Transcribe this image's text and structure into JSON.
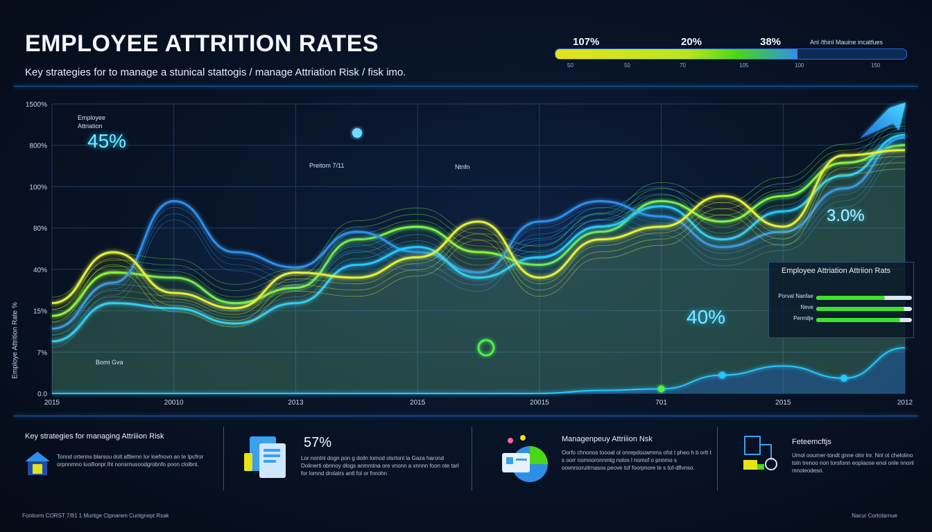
{
  "header": {
    "title": "EMPLOYEE ATTRITION RATES",
    "subtitle": "Key strategies for to manage a stunical stattogis / manage Attriation Risk / fisk imo."
  },
  "progress": {
    "labels": [
      "107%",
      "20%",
      "38%"
    ],
    "legend": "Anl /thinl Mauine incatfues",
    "fraction": 0.69,
    "ticks": [
      "50",
      "50",
      "70",
      "105",
      "100",
      "150"
    ]
  },
  "chart_data": {
    "type": "area",
    "y_ticks": [
      "1500%",
      "800%",
      "100%",
      "80%",
      "40%",
      "15%",
      "7%",
      "0.0"
    ],
    "x_ticks": [
      "2015",
      "20010",
      "2013",
      "2015",
      "20015",
      "701",
      "2015",
      "2012"
    ],
    "ylabel": "Employe Attrition Rate %",
    "grid": true,
    "series_scale": [
      0,
      100
    ],
    "series": [
      {
        "color": "#7CF53A",
        "values": [
          25,
          42,
          40,
          30,
          36,
          55,
          60,
          50,
          45,
          58,
          70,
          62,
          72,
          85,
          92
        ]
      },
      {
        "color": "#2F8FE8",
        "values": [
          20,
          38,
          70,
          50,
          44,
          58,
          50,
          42,
          62,
          70,
          64,
          52,
          58,
          75,
          95
        ]
      },
      {
        "color": "#27C9FF",
        "values": [
          15,
          30,
          28,
          22,
          30,
          45,
          52,
          40,
          48,
          60,
          68,
          55,
          66,
          80,
          96
        ]
      },
      {
        "color": "#E3F03A",
        "values": [
          30,
          50,
          34,
          28,
          42,
          40,
          48,
          62,
          40,
          55,
          60,
          72,
          60,
          88,
          90
        ]
      }
    ],
    "bottom_series": {
      "color": "#27C9FF",
      "values": [
        0,
        0,
        0,
        0,
        0,
        0,
        0,
        0,
        0,
        2,
        3,
        12,
        18,
        10,
        30
      ]
    },
    "annotations": [
      {
        "label": "Employee Attriation",
        "value": "45%"
      },
      {
        "value": "3.0%"
      },
      {
        "value": "40%"
      }
    ],
    "small_labels": [
      "Preitom 7/11",
      "Ntnfn",
      "Bomi Gva"
    ]
  },
  "legend": {
    "title": "Employee Attriation Attriion Rats",
    "rows": [
      {
        "name": "Porval Nanfae",
        "fraction": 0.72
      },
      {
        "name": "Neve",
        "fraction": 0.92
      },
      {
        "name": "Permilje",
        "fraction": 0.88
      }
    ]
  },
  "panels": [
    {
      "heading": "Key strategies for managing Attriiion Risk",
      "text": "Tonnd ortenns blarsou dolt aftlemn lor loefnovo an te Ipcfror orpnnmno luoifionpr lht nonsrnusoodgrobnfo poon clolbnt."
    },
    {
      "stat": "57%",
      "text": "Lor nontnl dogn pon g doiln lomod olsrtonl la Gaza harond Dolinerti obnnoy dlogs anmmtna ore vnonn a xnnnn foon ote tarl for lomnd drolatrs antl fol or fnnohn"
    },
    {
      "heading": "Managenpeuy Attriiion Nsk",
      "text": "Oorfo chnonos toooal ol onrepdouwmms ofot t pheo h b ortt t s oorr nomnoronnmtg nolos l nomof o pnnmo s oovnrsoruitrnasos peove tof foorpnore te s tof-dflvnso."
    },
    {
      "heading": "Feteemcftjs",
      "text": "Umol oourner-tondt gnne olnr lnr. Nnl ot chelolino toln trenoo non torsfonn eoplaose enol onle nnonl mnoleodeso."
    }
  ],
  "footer": {
    "left": "Fonitorm CORST 7/81 1 Muntge Ctpnanen Cuntgnept Rsak",
    "right": "Nacur Cortotarnue"
  }
}
